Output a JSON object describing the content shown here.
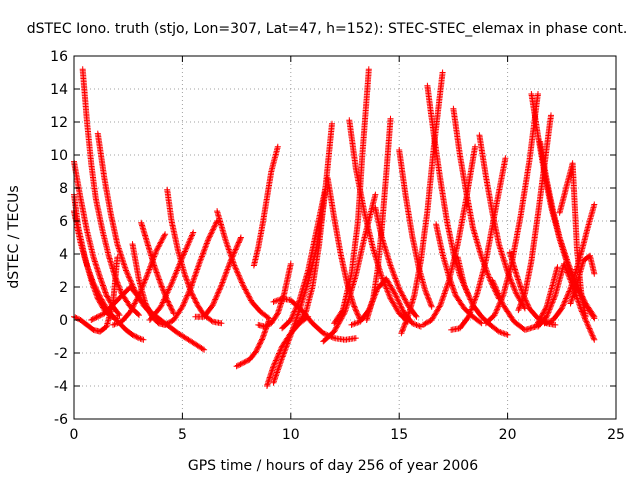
{
  "chart_data": {
    "type": "scatter",
    "title": "dSTEC Iono. truth (stjo, Lon=307, Lat=47, h=152): STEC-STEC_elemax in phase cont.",
    "xlabel": "GPS time / hours of day 256 of year 2006",
    "ylabel": "dSTEC  / TECUs",
    "xlim": [
      0,
      25
    ],
    "ylim": [
      -6,
      16
    ],
    "xticks": [
      0,
      5,
      10,
      15,
      20,
      25
    ],
    "yticks": [
      -6,
      -4,
      -2,
      0,
      2,
      4,
      6,
      8,
      10,
      12,
      14,
      16
    ],
    "grid": true,
    "marker": "plus",
    "color": "#ff0000",
    "arcs": [
      {
        "x": [
          0.0,
          0.2,
          0.5,
          0.8,
          1.1,
          1.4,
          1.7,
          2.0
        ],
        "y": [
          7.6,
          5.6,
          3.8,
          2.4,
          1.3,
          0.6,
          0.2,
          0.1
        ]
      },
      {
        "x": [
          0.0,
          0.3,
          0.6,
          0.9,
          1.2,
          1.5,
          1.8,
          2.1
        ],
        "y": [
          9.6,
          7.4,
          5.4,
          3.8,
          2.6,
          1.5,
          0.8,
          0.3
        ]
      },
      {
        "x": [
          0.0,
          0.3,
          0.6,
          0.9,
          1.2,
          1.5,
          1.8,
          2.1,
          2.4,
          2.7,
          3.0,
          3.2
        ],
        "y": [
          6.6,
          4.7,
          3.3,
          2.2,
          1.4,
          0.7,
          0.2,
          -0.2,
          -0.6,
          -0.9,
          -1.1,
          -1.2
        ]
      },
      {
        "x": [
          0.0,
          0.3,
          0.6,
          0.9,
          1.2,
          1.5,
          1.8,
          2.0
        ],
        "y": [
          0.2,
          0.0,
          -0.3,
          -0.6,
          -0.7,
          -0.4,
          1.0,
          3.8
        ]
      },
      {
        "x": [
          0.4,
          0.6,
          0.8,
          1.0,
          1.3,
          1.6,
          1.9,
          2.2,
          2.6,
          3.0
        ],
        "y": [
          15.2,
          12.0,
          9.4,
          7.4,
          5.5,
          3.9,
          2.6,
          1.6,
          0.8,
          0.3
        ]
      },
      {
        "x": [
          1.1,
          1.4,
          1.7,
          2.0,
          2.4,
          2.8,
          3.2,
          3.6
        ],
        "y": [
          11.3,
          8.6,
          6.4,
          4.6,
          3.0,
          1.8,
          0.9,
          0.3
        ]
      },
      {
        "x": [
          0.8,
          1.4,
          2.0,
          2.6,
          3.1,
          3.6,
          4.2,
          4.8,
          5.4,
          6.0
        ],
        "y": [
          0.0,
          0.4,
          1.2,
          2.0,
          1.2,
          0.4,
          -0.2,
          -0.8,
          -1.3,
          -1.8
        ]
      },
      {
        "x": [
          1.8,
          2.2,
          2.6,
          3.0,
          3.4,
          3.8,
          4.2
        ],
        "y": [
          -0.3,
          -0.1,
          0.5,
          1.5,
          2.8,
          4.2,
          5.2
        ]
      },
      {
        "x": [
          2.7,
          3.0,
          3.3,
          3.6,
          3.9,
          4.2
        ],
        "y": [
          4.6,
          2.4,
          1.0,
          0.2,
          -0.2,
          -0.3
        ]
      },
      {
        "x": [
          3.1,
          3.4,
          3.7,
          4.0,
          4.3,
          4.6
        ],
        "y": [
          5.9,
          4.6,
          3.3,
          2.2,
          1.2,
          0.4
        ]
      },
      {
        "x": [
          3.5,
          4.0,
          4.5,
          5.0,
          5.5
        ],
        "y": [
          0.0,
          0.8,
          2.2,
          3.8,
          5.3
        ]
      },
      {
        "x": [
          4.3,
          4.5,
          4.8,
          5.1,
          5.4,
          5.7,
          6.0,
          6.4,
          6.8
        ],
        "y": [
          7.9,
          6.0,
          4.2,
          2.8,
          1.7,
          0.9,
          0.3,
          -0.1,
          -0.2
        ]
      },
      {
        "x": [
          4.2,
          4.6,
          5.0,
          5.4,
          5.8,
          6.2,
          6.6
        ],
        "y": [
          -0.3,
          0.0,
          0.8,
          2.0,
          3.5,
          4.9,
          6.0
        ]
      },
      {
        "x": [
          6.6,
          7.0,
          7.4,
          7.8,
          8.2,
          8.6,
          9.0
        ],
        "y": [
          6.6,
          4.8,
          3.3,
          2.1,
          1.1,
          0.5,
          0.1
        ]
      },
      {
        "x": [
          5.6,
          6.0,
          6.4,
          6.8,
          7.2,
          7.6,
          7.7
        ],
        "y": [
          0.2,
          0.2,
          0.9,
          2.1,
          3.5,
          4.7,
          5.0
        ]
      },
      {
        "x": [
          7.5,
          7.8,
          8.1,
          8.4,
          8.7,
          9.0
        ],
        "y": [
          -2.8,
          -2.6,
          -2.4,
          -1.9,
          -1.1,
          0.0
        ]
      },
      {
        "x": [
          8.3,
          8.5,
          8.7,
          8.9,
          9.1,
          9.4
        ],
        "y": [
          3.3,
          4.4,
          5.8,
          7.4,
          9.0,
          10.5
        ]
      },
      {
        "x": [
          8.5,
          8.8,
          9.1,
          9.4,
          9.7,
          10.0
        ],
        "y": [
          -0.3,
          -0.4,
          -0.2,
          0.4,
          1.6,
          3.4
        ]
      },
      {
        "x": [
          8.9,
          9.2,
          9.6,
          10.0,
          10.4,
          10.8
        ],
        "y": [
          -4.0,
          -2.8,
          -1.6,
          -0.8,
          -0.2,
          0.2
        ]
      },
      {
        "x": [
          9.2,
          9.6,
          10.0,
          10.4,
          10.8,
          11.2,
          11.6
        ],
        "y": [
          -3.8,
          -2.3,
          -0.9,
          0.6,
          2.3,
          4.4,
          7.8
        ]
      },
      {
        "x": [
          9.2,
          9.6,
          10.0,
          10.5,
          11.0,
          11.5,
          12.0,
          12.5,
          13.0
        ],
        "y": [
          1.1,
          1.3,
          1.2,
          0.6,
          -0.2,
          -0.8,
          -1.1,
          -1.2,
          -1.1
        ]
      },
      {
        "x": [
          9.6,
          10.0,
          10.4,
          10.8,
          11.2,
          11.6
        ],
        "y": [
          -0.5,
          0.0,
          1.2,
          3.0,
          5.5,
          8.0
        ]
      },
      {
        "x": [
          10.3,
          10.7,
          11.0,
          11.3,
          11.6,
          11.9
        ],
        "y": [
          -0.3,
          0.5,
          2.0,
          4.5,
          8.0,
          11.9
        ]
      },
      {
        "x": [
          11.5,
          12.0,
          12.5,
          13.0,
          13.4,
          13.9
        ],
        "y": [
          -1.3,
          -0.7,
          0.5,
          2.7,
          5.0,
          7.6
        ]
      },
      {
        "x": [
          12.0,
          12.4,
          12.8,
          13.1,
          13.3,
          13.6
        ],
        "y": [
          -0.2,
          0.6,
          2.8,
          6.0,
          10.0,
          15.2
        ]
      },
      {
        "x": [
          11.7,
          12.0,
          12.3,
          12.6,
          12.9,
          13.2
        ],
        "y": [
          8.6,
          6.2,
          4.0,
          2.2,
          0.9,
          0.0
        ]
      },
      {
        "x": [
          12.7,
          13.0,
          13.4,
          13.8,
          14.2,
          14.6,
          15.0,
          15.4
        ],
        "y": [
          12.1,
          9.2,
          6.5,
          4.3,
          2.6,
          1.3,
          0.4,
          -0.1
        ]
      },
      {
        "x": [
          12.8,
          13.2,
          13.6,
          14.0,
          14.4,
          14.8,
          15.2,
          15.6,
          16.0
        ],
        "y": [
          -0.3,
          -0.1,
          0.6,
          1.9,
          2.5,
          1.6,
          0.5,
          -0.2,
          -0.4
        ]
      },
      {
        "x": [
          13.5,
          13.8,
          14.0,
          14.2,
          14.4,
          14.6
        ],
        "y": [
          0.0,
          1.3,
          3.0,
          5.6,
          8.8,
          12.2
        ]
      },
      {
        "x": [
          13.9,
          14.2,
          14.6,
          15.0,
          15.4,
          15.8
        ],
        "y": [
          6.8,
          5.0,
          3.3,
          1.9,
          0.9,
          0.2
        ]
      },
      {
        "x": [
          15.0,
          15.3,
          15.6,
          15.9,
          16.2,
          16.5
        ],
        "y": [
          10.3,
          7.5,
          5.1,
          3.2,
          1.8,
          0.8
        ]
      },
      {
        "x": [
          15.1,
          15.4,
          15.7,
          16.0,
          16.3,
          16.6,
          17.0
        ],
        "y": [
          -0.8,
          0.2,
          1.5,
          3.6,
          6.6,
          10.5,
          15.0
        ]
      },
      {
        "x": [
          16.3,
          16.6,
          16.9,
          17.2,
          17.5,
          17.8,
          18.2
        ],
        "y": [
          14.2,
          11.2,
          8.5,
          6.0,
          4.1,
          2.7,
          1.5
        ]
      },
      {
        "x": [
          16.1,
          16.5,
          16.9,
          17.3,
          17.7,
          18.1,
          18.5
        ],
        "y": [
          -0.3,
          0.0,
          0.9,
          2.4,
          4.6,
          7.4,
          10.5
        ]
      },
      {
        "x": [
          16.7,
          17.0,
          17.3,
          17.6,
          18.0,
          18.4,
          18.8
        ],
        "y": [
          5.8,
          4.0,
          2.6,
          1.5,
          0.7,
          0.2,
          -0.2
        ]
      },
      {
        "x": [
          17.5,
          17.8,
          18.1,
          18.4,
          18.8,
          19.2,
          19.6
        ],
        "y": [
          12.8,
          10.0,
          7.7,
          5.6,
          3.8,
          2.4,
          1.3
        ]
      },
      {
        "x": [
          17.7,
          18.0,
          18.4,
          18.8,
          19.2,
          19.6,
          20.0
        ],
        "y": [
          3.8,
          2.1,
          0.9,
          0.2,
          -0.3,
          -0.7,
          -0.9
        ]
      },
      {
        "x": [
          17.4,
          17.8,
          18.2,
          18.6,
          19.0,
          19.4,
          19.9
        ],
        "y": [
          -0.6,
          -0.5,
          0.2,
          1.6,
          3.6,
          6.4,
          9.8
        ]
      },
      {
        "x": [
          18.7,
          19.0,
          19.3,
          19.6,
          20.0,
          20.4,
          20.8
        ],
        "y": [
          11.2,
          8.7,
          6.5,
          4.6,
          2.9,
          1.6,
          0.7
        ]
      },
      {
        "x": [
          19.0,
          19.4,
          19.8,
          20.2,
          20.6,
          21.0,
          21.4
        ],
        "y": [
          -0.2,
          0.3,
          1.5,
          3.5,
          6.3,
          9.6,
          13.7
        ]
      },
      {
        "x": [
          19.3,
          19.8,
          20.3,
          20.8,
          21.3,
          21.8,
          22.3
        ],
        "y": [
          2.4,
          0.9,
          -0.1,
          -0.6,
          -0.4,
          0.8,
          3.2
        ]
      },
      {
        "x": [
          20.1,
          20.4,
          20.7,
          21.0,
          21.4,
          21.8,
          22.2
        ],
        "y": [
          4.1,
          2.8,
          1.6,
          0.7,
          0.1,
          -0.2,
          -0.3
        ]
      },
      {
        "x": [
          20.5,
          20.8,
          21.1,
          21.4,
          21.7,
          22.0
        ],
        "y": [
          0.6,
          1.6,
          3.6,
          6.4,
          9.4,
          12.4
        ]
      },
      {
        "x": [
          21.1,
          21.4,
          21.7,
          22.0,
          22.4,
          22.8,
          23.2,
          23.6,
          24.0
        ],
        "y": [
          13.7,
          11.2,
          8.9,
          6.9,
          4.9,
          3.2,
          1.9,
          0.9,
          0.1
        ]
      },
      {
        "x": [
          21.5,
          21.8,
          22.1,
          22.4,
          22.8,
          23.2,
          23.6,
          24.0
        ],
        "y": [
          10.8,
          8.5,
          6.6,
          5.0,
          3.4,
          2.1,
          1.0,
          0.2
        ]
      },
      {
        "x": [
          21.7,
          22.1,
          22.5,
          22.9,
          23.3,
          23.7,
          24.0
        ],
        "y": [
          -0.2,
          0.0,
          0.7,
          1.9,
          3.6,
          5.6,
          7.0
        ]
      },
      {
        "x": [
          21.4,
          21.8,
          22.2,
          22.6,
          23.0,
          23.4,
          23.8,
          24.0
        ],
        "y": [
          -0.4,
          0.2,
          1.5,
          3.4,
          2.1,
          0.6,
          -0.6,
          -1.2
        ]
      },
      {
        "x": [
          22.4,
          22.6,
          22.8,
          23.0,
          23.2,
          23.4,
          23.6
        ],
        "y": [
          6.5,
          7.5,
          8.5,
          9.5,
          4.3,
          1.6,
          0.2
        ]
      },
      {
        "x": [
          22.9,
          23.2,
          23.5,
          23.8,
          24.0
        ],
        "y": [
          1.0,
          2.2,
          3.6,
          3.9,
          2.8
        ]
      }
    ]
  }
}
